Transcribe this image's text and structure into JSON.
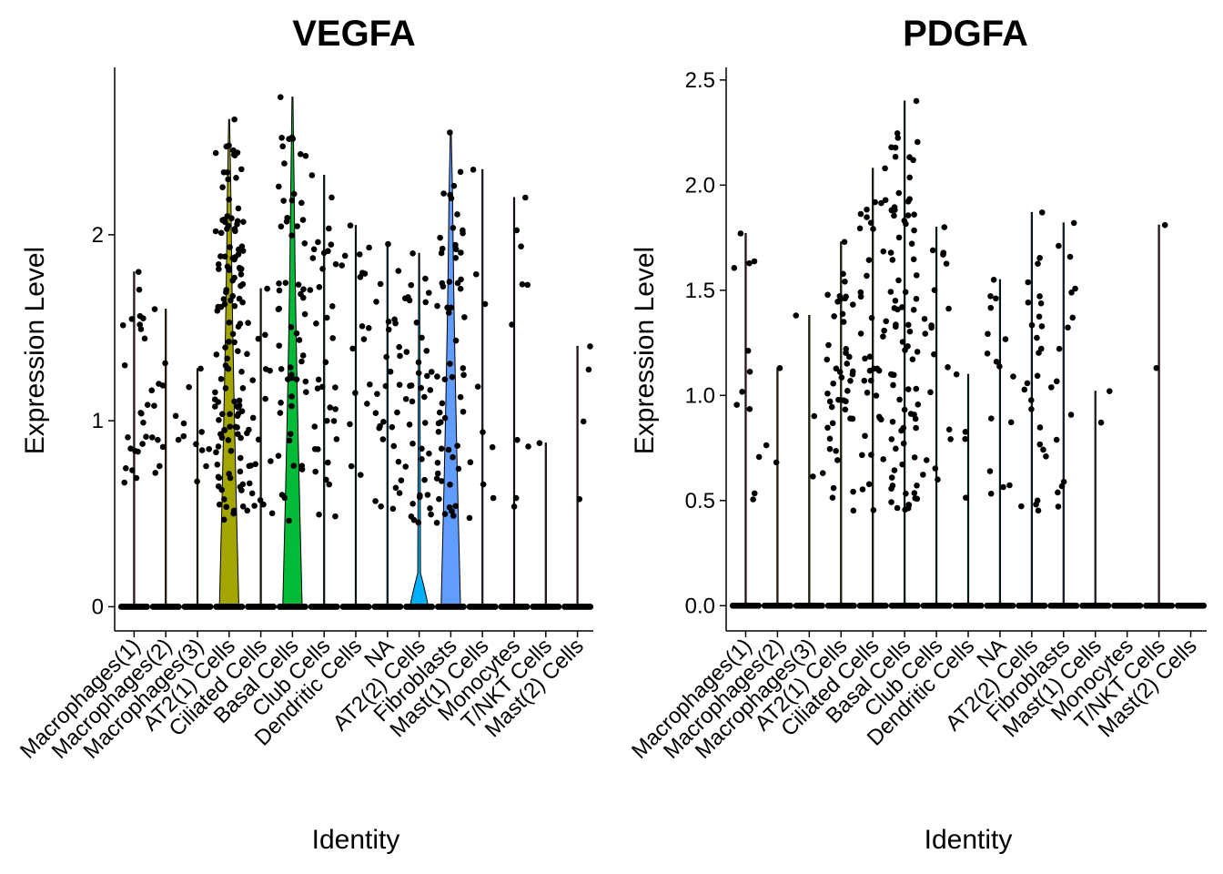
{
  "chart_data": [
    {
      "type": "violin",
      "title": "VEGFA",
      "xlabel": "Identity",
      "ylabel": "Expression Level",
      "ylim": [
        -0.13,
        2.9
      ],
      "yticks": [
        0,
        1,
        2
      ],
      "ytick_labels": [
        "0",
        "1",
        "2"
      ],
      "categories": [
        "Macrophages(1)",
        "Macrophages(2)",
        "Macrophages(3)",
        "AT2(1) Cells",
        "Ciliated Cells",
        "Basal Cells",
        "Club Cells",
        "Dendritic Cells",
        "NA",
        "AT2(2) Cells",
        "Fibroblasts",
        "Mast(1) Cells",
        "Monocytes",
        "T/NKT Cells",
        "Mast(2) Cells"
      ],
      "max_values": [
        1.8,
        1.6,
        1.28,
        2.62,
        1.71,
        2.74,
        2.32,
        2.05,
        1.95,
        1.9,
        2.55,
        2.35,
        2.2,
        0.88,
        1.4
      ],
      "nonzero_points": [
        24,
        13,
        10,
        130,
        24,
        58,
        36,
        18,
        30,
        40,
        60,
        10,
        10,
        1,
        4
      ],
      "violin_fill": [
        "#F8766D",
        "#E58700",
        "#C99800",
        "#A3A500",
        "#6BB100",
        "#00BA38",
        "#00BF7D",
        "#00C0AF",
        "#00BCD8",
        "#00B0F6",
        "#619CFF",
        "#B983FF",
        "#E76BF3",
        "#FD61D1",
        "#FF67A4"
      ],
      "grid": false,
      "legend": "none"
    },
    {
      "type": "violin",
      "title": "PDGFA",
      "xlabel": "Identity",
      "ylabel": "Expression Level",
      "ylim": [
        -0.12,
        2.56
      ],
      "yticks": [
        0,
        0.5,
        1,
        1.5,
        2,
        2.5
      ],
      "ytick_labels": [
        "0.0",
        "0.5",
        "1.0",
        "1.5",
        "2.0",
        "2.5"
      ],
      "categories": [
        "Macrophages(1)",
        "Macrophages(2)",
        "Macrophages(3)",
        "AT2(1) Cells",
        "Ciliated Cells",
        "Basal Cells",
        "Club Cells",
        "Dendritic Cells",
        "NA",
        "AT2(2) Cells",
        "Fibroblasts",
        "Mast(1) Cells",
        "Monocytes",
        "T/NKT Cells",
        "Mast(2) Cells"
      ],
      "max_values": [
        1.77,
        1.13,
        1.38,
        1.73,
        2.08,
        2.4,
        1.8,
        1.1,
        1.55,
        1.87,
        1.82,
        1.02,
        0,
        1.81,
        0
      ],
      "nonzero_points": [
        12,
        3,
        4,
        46,
        40,
        82,
        20,
        4,
        16,
        26,
        16,
        2,
        0,
        2,
        0
      ],
      "violin_fill": [
        "#F8766D",
        "#E58700",
        "#C99800",
        "#A3A500",
        "#6BB100",
        "#00BA38",
        "#00BF7D",
        "#00C0AF",
        "#00BCD8",
        "#00B0F6",
        "#619CFF",
        "#B983FF",
        "#E76BF3",
        "#FD61D1",
        "#FF67A4"
      ],
      "grid": false,
      "legend": "none"
    }
  ]
}
